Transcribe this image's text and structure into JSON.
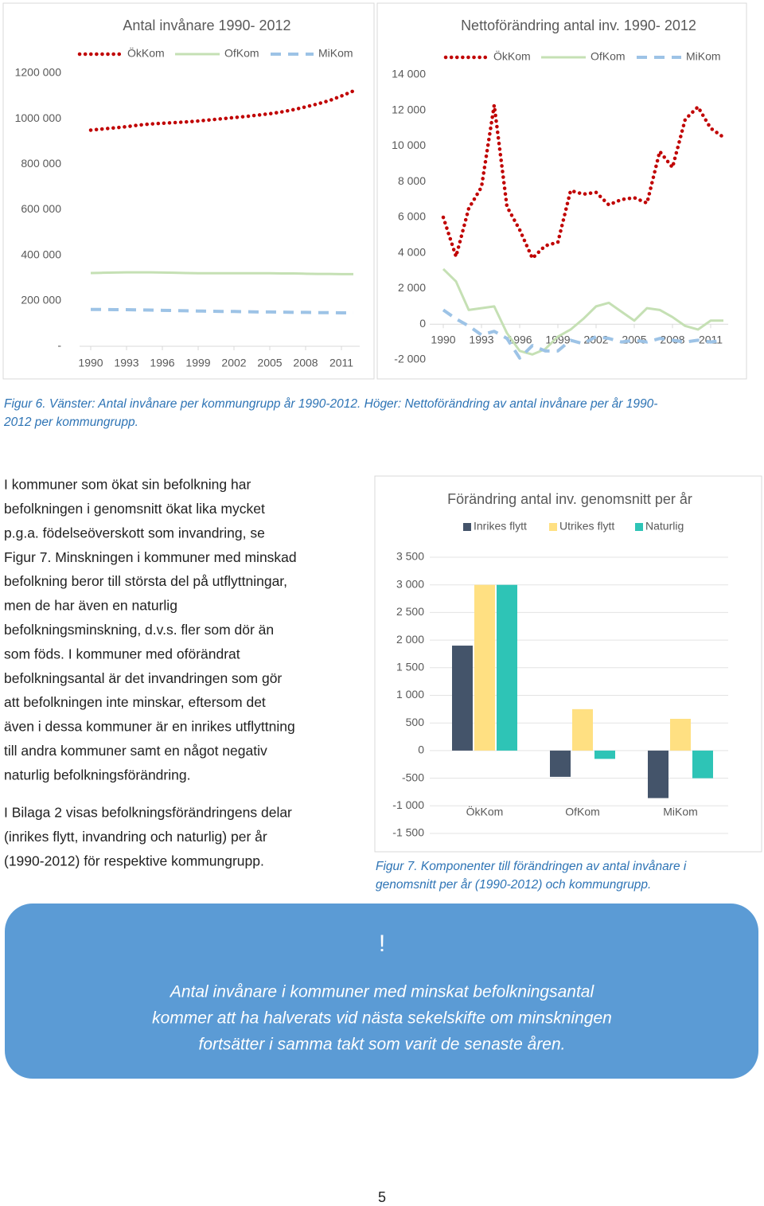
{
  "chart_data": [
    {
      "type": "line",
      "title": "Antal invånare 1990- 2012",
      "x": [
        1990,
        1991,
        1992,
        1993,
        1994,
        1995,
        1996,
        1997,
        1998,
        1999,
        2000,
        2001,
        2002,
        2003,
        2004,
        2005,
        2006,
        2007,
        2008,
        2009,
        2010,
        2011,
        2012
      ],
      "xlim": [
        1990,
        2012
      ],
      "xticks": [
        1990,
        1993,
        1996,
        1999,
        2002,
        2005,
        2008,
        2011
      ],
      "ylim": [
        0,
        1200000
      ],
      "yticks": [
        {
          "value": 0,
          "label": "-"
        },
        {
          "value": 200000,
          "label": "200 000"
        },
        {
          "value": 400000,
          "label": "400 000"
        },
        {
          "value": 600000,
          "label": "600 000"
        },
        {
          "value": 800000,
          "label": "800 000"
        },
        {
          "value": 1000000,
          "label": "1000 000"
        },
        {
          "value": 1200000,
          "label": "1200 000"
        }
      ],
      "series": [
        {
          "name": "ÖkKom",
          "color": "#c00000",
          "style": "dotted",
          "values": [
            950000,
            955000,
            960000,
            965000,
            972000,
            977000,
            980000,
            983000,
            986000,
            990000,
            995000,
            1000000,
            1005000,
            1010000,
            1016000,
            1022000,
            1030000,
            1040000,
            1052000,
            1065000,
            1080000,
            1100000,
            1122000
          ]
        },
        {
          "name": "OfKom",
          "color": "#c5e0b4",
          "style": "solid",
          "values": [
            322000,
            323000,
            324000,
            325000,
            325000,
            325000,
            324000,
            323000,
            322000,
            321000,
            321000,
            321000,
            321000,
            321000,
            321000,
            321000,
            320000,
            320000,
            319000,
            318000,
            318000,
            317000,
            317000
          ]
        },
        {
          "name": "MiKom",
          "color": "#9dc3e6",
          "style": "dashed",
          "values": [
            162000,
            162000,
            161000,
            161000,
            160000,
            159000,
            158000,
            157000,
            156000,
            155000,
            154000,
            153000,
            153000,
            152000,
            151000,
            151000,
            150000,
            149000,
            149000,
            148000,
            148000,
            147000,
            147000
          ]
        }
      ]
    },
    {
      "type": "line",
      "title": "Nettoförändring antal inv. 1990- 2012",
      "x": [
        1990,
        1991,
        1992,
        1993,
        1994,
        1995,
        1996,
        1997,
        1998,
        1999,
        2000,
        2001,
        2002,
        2003,
        2004,
        2005,
        2006,
        2007,
        2008,
        2009,
        2010,
        2011,
        2012
      ],
      "xlim": [
        1990,
        2012
      ],
      "xticks": [
        1990,
        1993,
        1996,
        1999,
        2002,
        2005,
        2008,
        2011
      ],
      "ylim": [
        -2000,
        14000
      ],
      "yticks": [
        {
          "value": -2000,
          "label": "-2 000"
        },
        0,
        {
          "value": 2000,
          "label": "2 000"
        },
        {
          "value": 4000,
          "label": "4 000"
        },
        {
          "value": 6000,
          "label": "6 000"
        },
        {
          "value": 8000,
          "label": "8 000"
        },
        {
          "value": 10000,
          "label": "10 000"
        },
        {
          "value": 12000,
          "label": "12 000"
        },
        {
          "value": 14000,
          "label": "14 000"
        }
      ],
      "series": [
        {
          "name": "ÖkKom",
          "color": "#c00000",
          "style": "dotted",
          "values": [
            6000,
            3800,
            6500,
            7700,
            12300,
            6600,
            5300,
            3700,
            4400,
            4600,
            7500,
            7300,
            7400,
            6700,
            7000,
            7100,
            6800,
            9700,
            8800,
            11500,
            12200,
            11000,
            10500
          ]
        },
        {
          "name": "OfKom",
          "color": "#c5e0b4",
          "style": "solid",
          "values": [
            3100,
            2400,
            800,
            900,
            1000,
            -500,
            -1500,
            -1700,
            -1400,
            -700,
            -300,
            300,
            1000,
            1200,
            700,
            200,
            900,
            800,
            400,
            -100,
            -300,
            200,
            200
          ]
        },
        {
          "name": "MiKom",
          "color": "#9dc3e6",
          "style": "dashed",
          "values": [
            800,
            300,
            -100,
            -600,
            -400,
            -800,
            -1900,
            -1200,
            -1500,
            -1500,
            -900,
            -1100,
            -700,
            -800,
            -1000,
            -900,
            -1000,
            -800,
            -900,
            -1000,
            -900,
            -1000,
            -900
          ]
        }
      ]
    },
    {
      "type": "bar",
      "title": "Förändring antal inv. genomsnitt per år",
      "categories": [
        "ÖkKom",
        "OfKom",
        "MiKom"
      ],
      "ylim": [
        -1500,
        3500
      ],
      "yticks": [
        {
          "value": -1500,
          "label": "-1 500"
        },
        {
          "value": -1000,
          "label": "-1 000"
        },
        -500,
        0,
        500,
        {
          "value": 1000,
          "label": "1 000"
        },
        {
          "value": 1500,
          "label": "1 500"
        },
        {
          "value": 2000,
          "label": "2 000"
        },
        {
          "value": 2500,
          "label": "2 500"
        },
        {
          "value": 3000,
          "label": "3 000"
        },
        {
          "value": 3500,
          "label": "3 500"
        }
      ],
      "grid": true,
      "series": [
        {
          "name": "Inrikes flytt",
          "color": "#44546a",
          "values": [
            1900,
            -475,
            -860
          ]
        },
        {
          "name": "Utrikes flytt",
          "color": "#ffe082",
          "values": [
            3000,
            750,
            575
          ]
        },
        {
          "name": "Naturlig",
          "color": "#2ec4b6",
          "values": [
            3000,
            -150,
            -500
          ]
        }
      ]
    }
  ],
  "captions": {
    "figure6": [
      "Figur 6. Vänster: Antal invånare per kommungrupp år 1990-2012. Höger: Nettoförändring av antal invånare per år 1990-",
      "2012 per kommungrupp."
    ],
    "figure7": [
      "Figur 7. Komponenter till förändringen av antal invånare i",
      "genomsnitt per år (1990-2012) och kommungrupp."
    ]
  },
  "paragraphs": [
    [
      "I kommuner som ökat sin befolkning har",
      "befolkningen i genomsnitt ökat lika mycket",
      "p.g.a. födelseöverskott som invandring, se",
      "Figur 7. Minskningen i kommuner med minskad",
      "befolkning beror till största del på utflyttningar,",
      "men de har även en naturlig",
      "befolkningsminskning, d.v.s. fler som dör än",
      "som föds. I kommuner med oförändrat",
      "befolkningsantal är det invandringen som gör",
      "att befolkningen inte minskar, eftersom det",
      "även i dessa kommuner är en inrikes utflyttning",
      "till andra kommuner samt en något negativ",
      "naturlig befolkningsförändring."
    ],
    [
      "I Bilaga 2 visas befolkningsförändringens delar",
      "(inrikes flytt, invandring och naturlig) per år",
      "(1990-2012) för respektive kommungrupp."
    ]
  ],
  "callout": {
    "icon": "!",
    "lines": [
      "Antal invånare i kommuner med minskat befolkningsantal",
      "kommer att ha halverats vid nästa sekelskifte om minskningen",
      "fortsätter i samma takt som varit de senaste åren."
    ]
  },
  "page_number": "5"
}
